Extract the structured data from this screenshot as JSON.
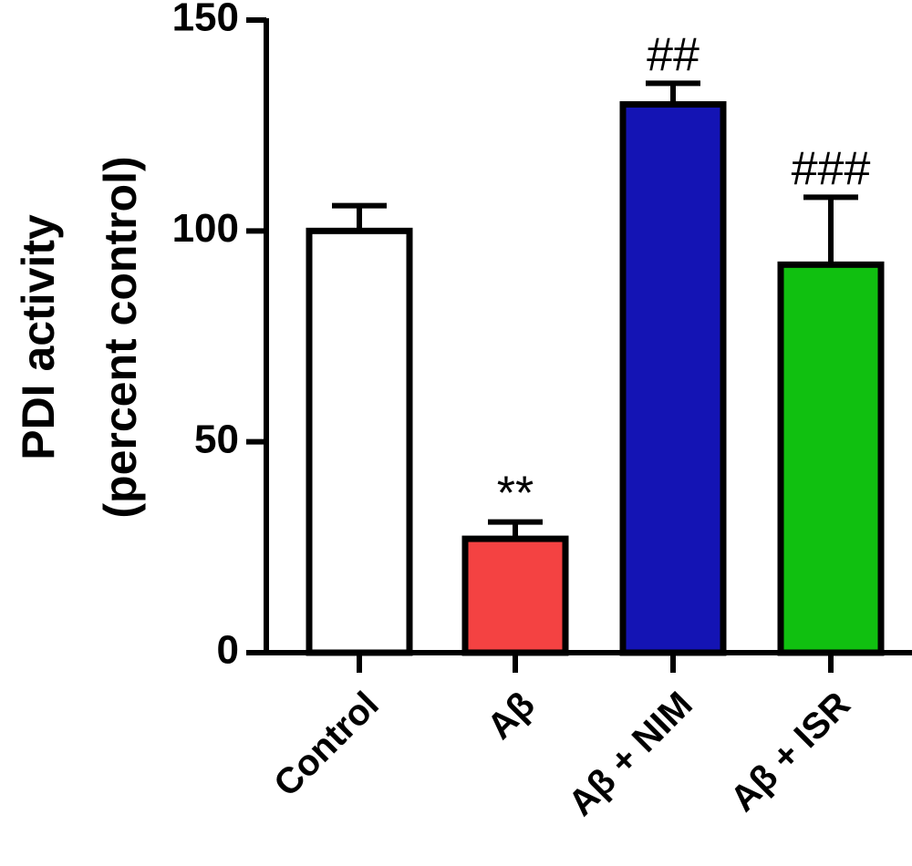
{
  "chart_data": {
    "type": "bar",
    "ylabel": {
      "line1": "PDI activity",
      "line2": "(percent control)"
    },
    "ylim": [
      0,
      150
    ],
    "yticks": [
      "0",
      "50",
      "100",
      "150"
    ],
    "ytick_values": [
      0,
      50,
      100,
      150
    ],
    "categories": [
      "Control",
      "Aβ",
      "Aβ + NIM",
      "Aβ + ISR"
    ],
    "values": [
      100,
      27,
      130,
      92
    ],
    "errors": [
      6,
      4,
      5,
      16
    ],
    "annotations": [
      "",
      "**",
      "##",
      "###"
    ],
    "colors": [
      "#ffffff",
      "#f44242",
      "#1414b4",
      "#10c010"
    ],
    "grid": false,
    "legend": "none"
  }
}
